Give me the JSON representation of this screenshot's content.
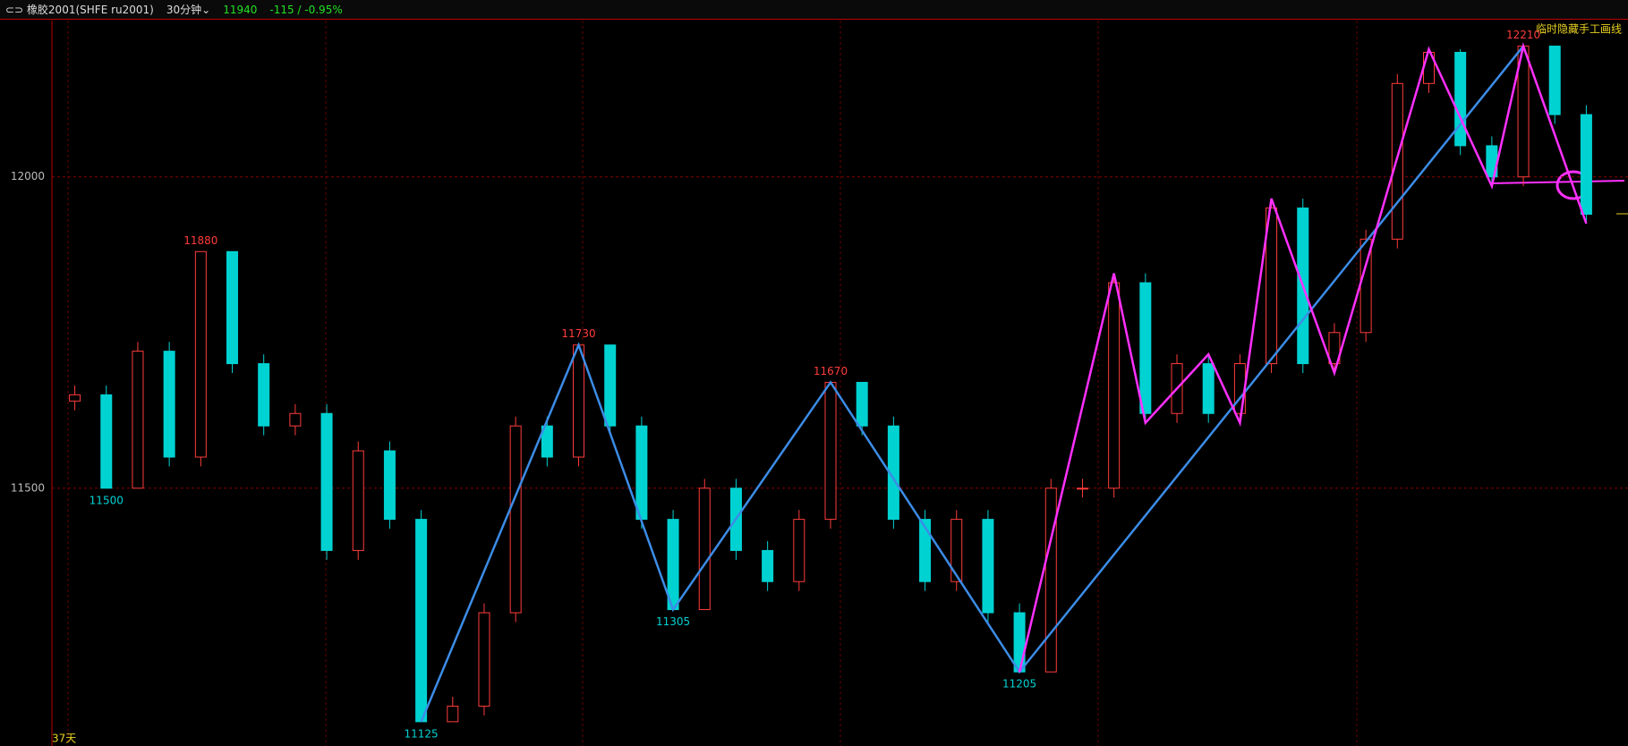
{
  "header": {
    "symbol": "⊂⊃ 橡胶2001(SHFE ru2001)",
    "period": "30分钟⌄",
    "last": "11940",
    "change": "-115 / -0.95%",
    "hide_note": "临时隐藏手工画线",
    "days": "37天"
  },
  "chart_data": {
    "type": "candlestick",
    "up_color": "#ff3c3c",
    "down_color": "#00d2d2",
    "ylim": [
      11086,
      12251
    ],
    "yticks": [
      11500,
      12000
    ],
    "grid": true,
    "open": [
      11640,
      11650,
      11500,
      11720,
      11550,
      11880,
      11700,
      11600,
      11620,
      11400,
      11560,
      11450,
      11125,
      11150,
      11300,
      11600,
      11550,
      11730,
      11600,
      11450,
      11305,
      11500,
      11400,
      11350,
      11450,
      11670,
      11600,
      11450,
      11350,
      11450,
      11300,
      11205,
      11500,
      11500,
      11830,
      11620,
      11700,
      11620,
      11700,
      11950,
      11700,
      11750,
      11900,
      12150,
      12200,
      12050,
      12000,
      12210,
      12100
    ],
    "high": [
      11665,
      11665,
      11735,
      11735,
      11880,
      11880,
      11715,
      11635,
      11635,
      11575,
      11575,
      11465,
      11165,
      11315,
      11615,
      11615,
      11730,
      11730,
      11615,
      11465,
      11515,
      11515,
      11415,
      11465,
      11670,
      11670,
      11615,
      11465,
      11465,
      11465,
      11315,
      11515,
      11515,
      11845,
      11845,
      11715,
      11715,
      11715,
      11965,
      11965,
      11765,
      11915,
      12165,
      12205,
      12205,
      12065,
      12210,
      12210,
      12115
    ],
    "low": [
      11625,
      11500,
      11500,
      11535,
      11535,
      11685,
      11585,
      11585,
      11385,
      11385,
      11435,
      11125,
      11125,
      11135,
      11285,
      11535,
      11535,
      11585,
      11435,
      11305,
      11305,
      11385,
      11335,
      11335,
      11435,
      11585,
      11435,
      11335,
      11335,
      11285,
      11205,
      11205,
      11485,
      11485,
      11605,
      11605,
      11605,
      11605,
      11685,
      11685,
      11685,
      11735,
      11885,
      12135,
      12035,
      11985,
      11985,
      12085,
      11925
    ],
    "close": [
      11650,
      11500,
      11720,
      11550,
      11880,
      11700,
      11600,
      11620,
      11400,
      11560,
      11450,
      11125,
      11150,
      11300,
      11600,
      11550,
      11730,
      11600,
      11450,
      11305,
      11500,
      11400,
      11350,
      11450,
      11670,
      11600,
      11450,
      11350,
      11450,
      11300,
      11205,
      11500,
      11500,
      11830,
      11620,
      11700,
      11620,
      11700,
      11950,
      11700,
      11750,
      11900,
      12150,
      12200,
      12050,
      12000,
      12210,
      12100,
      11940
    ],
    "annotations": [
      {
        "text": "11880",
        "value": 11880,
        "kind": "high"
      },
      {
        "text": "11730",
        "value": 11730,
        "kind": "high"
      },
      {
        "text": "11670",
        "value": 11670,
        "kind": "high"
      },
      {
        "text": "12210",
        "value": 12210,
        "kind": "high"
      },
      {
        "text": "11500",
        "value": 11500,
        "kind": "low"
      },
      {
        "text": "11125",
        "value": 11125,
        "kind": "low"
      },
      {
        "text": "11305",
        "value": 11305,
        "kind": "low"
      },
      {
        "text": "11205",
        "value": 11205,
        "kind": "low"
      }
    ]
  }
}
